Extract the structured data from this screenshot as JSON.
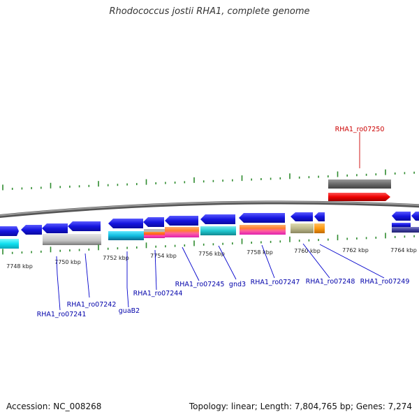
{
  "title": "Rhodococcus jostii RHA1, complete genome",
  "footer": {
    "accession": "Accession: NC_008268",
    "topology": "Topology: linear; Length: 7,804,765 bp; Genes: 7,274"
  },
  "colors": {
    "backbone": "#888888",
    "tick": "#2e8b2e",
    "forward_gene": "#1f1fe0",
    "highlight_label": "#cc0000",
    "gene_label": "#0000aa",
    "leader_line": "#0000cc"
  },
  "scale": {
    "unit": "kbp",
    "labels": [
      "7748 kbp",
      "7750 kbp",
      "7752 kbp",
      "7754 kbp",
      "7756 kbp",
      "7758 kbp",
      "7760 kbp",
      "7762 kbp",
      "7764 kbp"
    ]
  },
  "gene_labels": [
    {
      "name": "RHA1_ro07241",
      "color": "#0000aa"
    },
    {
      "name": "RHA1_ro07242",
      "color": "#0000aa"
    },
    {
      "name": "guaB2",
      "color": "#0000aa"
    },
    {
      "name": "RHA1_ro07244",
      "color": "#0000aa"
    },
    {
      "name": "RHA1_ro07245",
      "color": "#0000aa"
    },
    {
      "name": "gnd3",
      "color": "#0000aa"
    },
    {
      "name": "RHA1_ro07247",
      "color": "#0000aa"
    },
    {
      "name": "RHA1_ro07248",
      "color": "#0000aa"
    },
    {
      "name": "RHA1_ro07249",
      "color": "#0000aa"
    },
    {
      "name": "RHA1_ro07250",
      "color": "#cc0000"
    }
  ]
}
